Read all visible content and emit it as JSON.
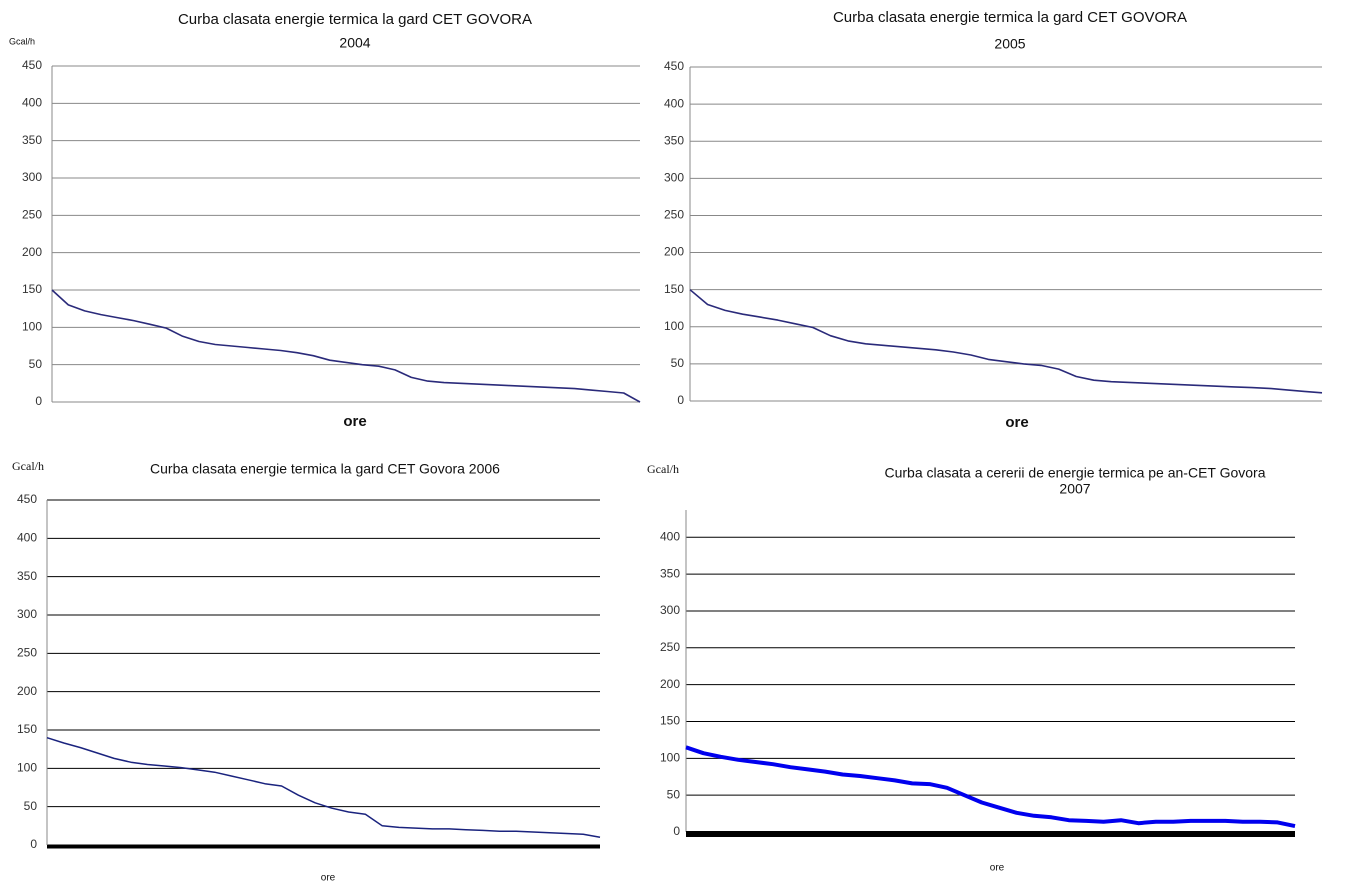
{
  "chart_data": [
    {
      "type": "line",
      "title": "Curba clasata energie termica la gard CET GOVORA",
      "subtitle": "2004",
      "y_label": "Gcal/h",
      "x_label": "ore",
      "ylim": [
        0,
        450
      ],
      "yticks": [
        0,
        50,
        100,
        150,
        200,
        250,
        300,
        350,
        400,
        450
      ],
      "grid": true,
      "grid_color": "#888888",
      "series": [
        {
          "name": "2004",
          "color": "#2a2a7a",
          "values": [
            150,
            130,
            122,
            117,
            113,
            109,
            104,
            99,
            88,
            81,
            77,
            75,
            73,
            71,
            69,
            66,
            62,
            56,
            53,
            50,
            48,
            43,
            33,
            28,
            26,
            25,
            24,
            23,
            22,
            21,
            20,
            19,
            18,
            16,
            14,
            12,
            0
          ]
        }
      ]
    },
    {
      "type": "line",
      "title": "Curba clasata energie termica la gard CET GOVORA",
      "subtitle": "2005",
      "x_label": "ore",
      "ylim": [
        0,
        450
      ],
      "yticks": [
        0,
        50,
        100,
        150,
        200,
        250,
        300,
        350,
        400,
        450
      ],
      "grid": true,
      "grid_color": "#888888",
      "series": [
        {
          "name": "2005",
          "color": "#2a2a7a",
          "values": [
            150,
            130,
            122,
            117,
            113,
            109,
            104,
            99,
            88,
            81,
            77,
            75,
            73,
            71,
            69,
            66,
            62,
            56,
            53,
            50,
            48,
            43,
            33,
            28,
            26,
            25,
            24,
            23,
            22,
            21,
            20,
            19,
            18,
            17,
            15,
            13,
            11
          ]
        }
      ]
    },
    {
      "type": "line",
      "title": "Curba clasata energie termica la gard CET  Govora   2006",
      "y_label": "Gcal/h",
      "x_label": "ore",
      "ylim": [
        0,
        450
      ],
      "yticks": [
        0,
        50,
        100,
        150,
        200,
        250,
        300,
        350,
        400,
        450
      ],
      "grid": true,
      "grid_color": "#000000",
      "series": [
        {
          "name": "2006",
          "color": "#1a237e",
          "values": [
            140,
            133,
            127,
            120,
            113,
            108,
            105,
            103,
            101,
            98,
            95,
            90,
            85,
            80,
            77,
            65,
            55,
            48,
            43,
            40,
            25,
            23,
            22,
            21,
            21,
            20,
            19,
            18,
            18,
            17,
            16,
            15,
            14,
            10
          ]
        }
      ]
    },
    {
      "type": "line",
      "title": "Curba clasata a cererii de energie termica pe an-CET Govora",
      "subtitle": "2007",
      "y_label": "Gcal/h",
      "x_label": "ore",
      "ylim": [
        0,
        437
      ],
      "yticks": [
        0,
        50,
        100,
        150,
        200,
        250,
        300,
        350,
        400
      ],
      "grid": true,
      "grid_color": "#000000",
      "series": [
        {
          "name": "2007",
          "color": "#0000ee",
          "values": [
            115,
            107,
            102,
            98,
            95,
            92,
            88,
            85,
            82,
            78,
            76,
            73,
            70,
            66,
            65,
            60,
            50,
            40,
            33,
            26,
            22,
            20,
            16,
            15,
            14,
            16,
            12,
            14,
            14,
            15,
            15,
            15,
            14,
            14,
            13,
            8
          ]
        }
      ]
    }
  ]
}
